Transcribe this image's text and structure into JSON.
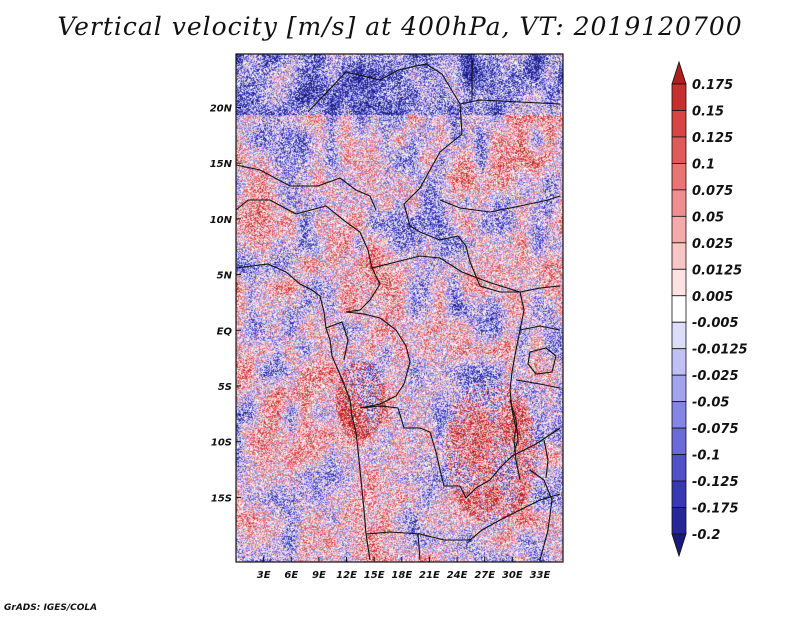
{
  "title": "Vertical velocity [m/s] at 400hPa, VT: 2019120700",
  "credit": "GrADS: IGES/COLA",
  "map": {
    "lon_range": [
      0,
      35.5
    ],
    "lat_range": [
      -20.8,
      24.8
    ],
    "y_tick_labels": [
      {
        "lat": 20,
        "label": "20N"
      },
      {
        "lat": 15,
        "label": "15N"
      },
      {
        "lat": 10,
        "label": "10N"
      },
      {
        "lat": 5,
        "label": "5N"
      },
      {
        "lat": 0,
        "label": "EQ"
      },
      {
        "lat": -5,
        "label": "5S"
      },
      {
        "lat": -10,
        "label": "10S"
      },
      {
        "lat": -15,
        "label": "15S"
      }
    ],
    "x_tick_labels": [
      {
        "lon": 3,
        "label": "3E"
      },
      {
        "lon": 6,
        "label": "6E"
      },
      {
        "lon": 9,
        "label": "9E"
      },
      {
        "lon": 12,
        "label": "12E"
      },
      {
        "lon": 15,
        "label": "15E"
      },
      {
        "lon": 18,
        "label": "18E"
      },
      {
        "lon": 21,
        "label": "21E"
      },
      {
        "lon": 24,
        "label": "24E"
      },
      {
        "lon": 27,
        "label": "27E"
      },
      {
        "lon": 30,
        "label": "30E"
      },
      {
        "lon": 33,
        "label": "33E"
      }
    ]
  },
  "colorbar": {
    "levels": [
      "0.175",
      "0.15",
      "0.125",
      "0.1",
      "0.075",
      "0.05",
      "0.025",
      "0.0125",
      "0.005",
      "-0.005",
      "-0.0125",
      "-0.025",
      "-0.05",
      "-0.075",
      "-0.1",
      "-0.125",
      "-0.175",
      "-0.2"
    ],
    "colors": [
      "#b21d1d",
      "#c83030",
      "#d84545",
      "#e05a5a",
      "#e87474",
      "#ef8e8e",
      "#f5aaaa",
      "#f9c6c6",
      "#fce2e2",
      "#ffffff",
      "#dcdcfb",
      "#c0c0f5",
      "#a2a2ee",
      "#8585e4",
      "#6a6ad8",
      "#5050c8",
      "#3838b4",
      "#26269a",
      "#1a1a7c"
    ]
  }
}
